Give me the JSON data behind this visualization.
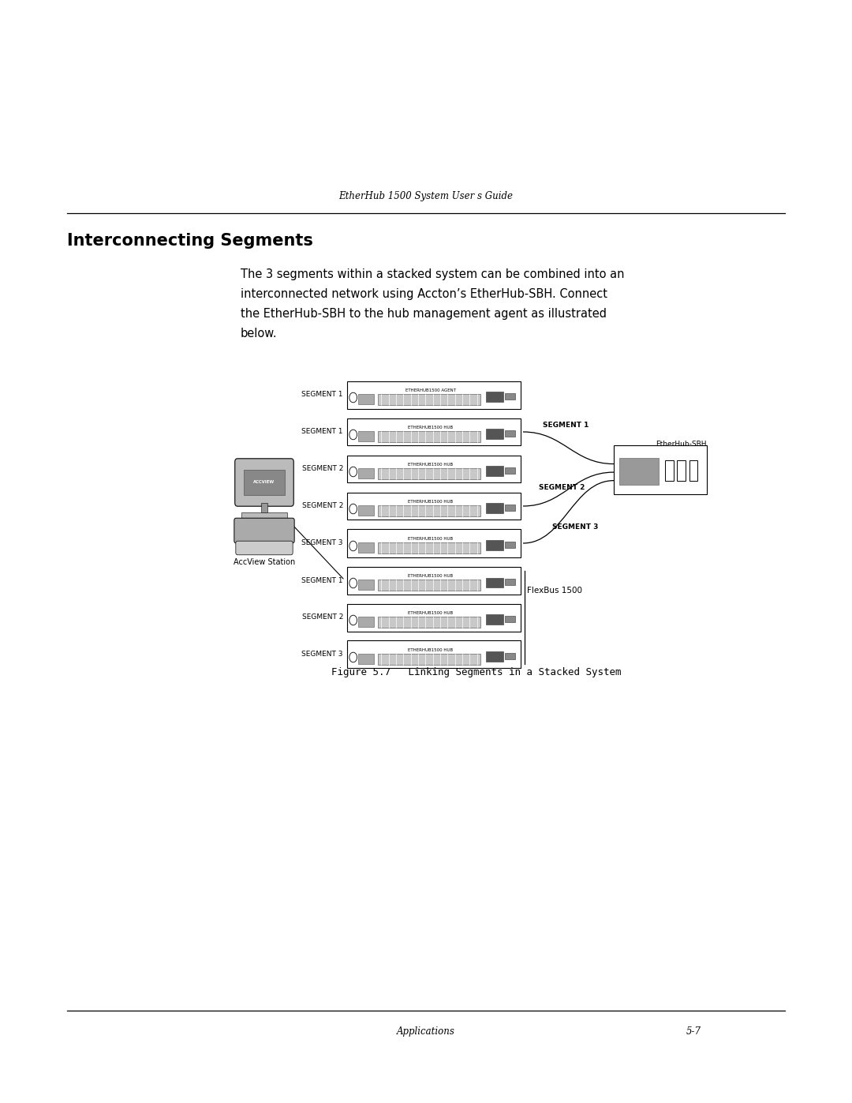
{
  "bg_color": "#ffffff",
  "page_width": 10.8,
  "page_height": 13.97,
  "header_text": "EtherHub 1500 System User s Guide",
  "section_title": "Interconnecting Segments",
  "body_lines": [
    "The 3 segments within a stacked system can be combined into an",
    "interconnected network using Accton’s EtherHub-SBH. Connect",
    "the EtherHub-SBH to the hub management agent as illustrated",
    "below."
  ],
  "figure_caption": "Figure 5.7   Linking Segments in a Stacked System",
  "footer_left": "Applications",
  "footer_right": "5-7",
  "hubs": [
    {
      "row": 0,
      "label": "SEGMENT 1",
      "title": "ETHERHUB1500 AGENT"
    },
    {
      "row": 1,
      "label": "SEGMENT 1",
      "title": "ETHERHUB1500 HUB"
    },
    {
      "row": 2,
      "label": "SEGMENT 2",
      "title": "ETHERHUB1500 HUB"
    },
    {
      "row": 3,
      "label": "SEGMENT 2",
      "title": "ETHERHUB1500 HUB"
    },
    {
      "row": 4,
      "label": "SEGMENT 3",
      "title": "ETHERHUB1500 HUB"
    },
    {
      "row": 5,
      "label": "SEGMENT 1",
      "title": "ETHERHUB1500 HUB"
    },
    {
      "row": 6,
      "label": "SEGMENT 2",
      "title": "ETHERHUB1500 HUB"
    },
    {
      "row": 7,
      "label": "SEGMENT 3",
      "title": "ETHERHUB1500 HUB"
    }
  ],
  "sbh_label": "EtherHub-SBH",
  "seg_label_1": "SEGMENT 1",
  "seg_label_2": "SEGMENT 2",
  "seg_label_3": "SEGMENT 3",
  "accview_label": "AccView Station",
  "accview_text": "ACCVIEW",
  "flexbus_label": "FlexBus 1500"
}
